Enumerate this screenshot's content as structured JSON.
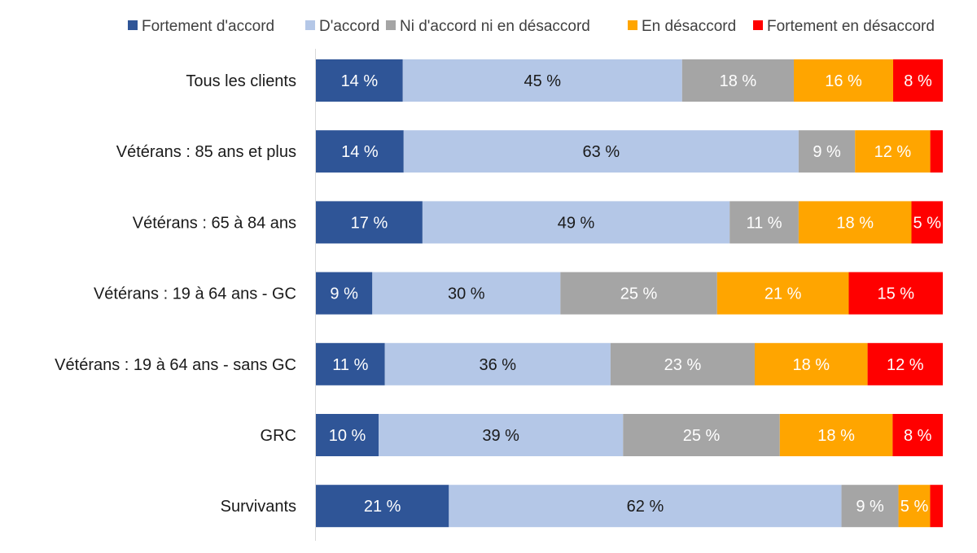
{
  "chart_data": {
    "type": "bar",
    "orientation": "horizontal",
    "stacked": "100%",
    "legend_position": "top",
    "grid": false,
    "categories": [
      "Tous les clients",
      "Vétérans : 85 ans et plus",
      "Vétérans : 65 à 84 ans",
      "Vétérans : 19 à 64 ans - GC",
      "Vétérans : 19 à 64 ans - sans GC",
      "GRC",
      "Survivants"
    ],
    "series": [
      {
        "name": "Fortement d'accord",
        "color": "#2F5597",
        "label_color": "#FFFFFF",
        "values": [
          14,
          14,
          17,
          9,
          11,
          10,
          21
        ],
        "labels": [
          "14 %",
          "14 %",
          "17 %",
          "9 %",
          "11 %",
          "10 %",
          "21 %"
        ]
      },
      {
        "name": "D'accord",
        "color": "#B4C7E7",
        "label_color": "#1A1A1A",
        "values": [
          45,
          63,
          49,
          30,
          36,
          39,
          62
        ],
        "labels": [
          "45 %",
          "63 %",
          "49 %",
          "30 %",
          "36 %",
          "39 %",
          "62 %"
        ]
      },
      {
        "name": "Ni d'accord ni en désaccord",
        "color": "#A5A5A5",
        "label_color": "#FFFFFF",
        "values": [
          18,
          9,
          11,
          25,
          23,
          25,
          9
        ],
        "labels": [
          "18 %",
          "9 %",
          "11 %",
          "25 %",
          "23 %",
          "25 %",
          "9 %"
        ]
      },
      {
        "name": "En désaccord",
        "color": "#FFA500",
        "label_color": "#FFFFFF",
        "values": [
          16,
          12,
          18,
          21,
          18,
          18,
          5
        ],
        "labels": [
          "16 %",
          "12 %",
          "18 %",
          "21 %",
          "18 %",
          "18 %",
          "5 %"
        ]
      },
      {
        "name": "Fortement en désaccord",
        "color": "#FF0000",
        "label_color": "#FFFFFF",
        "values": [
          8,
          2,
          5,
          15,
          12,
          8,
          2
        ],
        "labels": [
          "8 %",
          "",
          "5 %",
          "15 %",
          "12 %",
          "8 %",
          ""
        ]
      }
    ]
  }
}
